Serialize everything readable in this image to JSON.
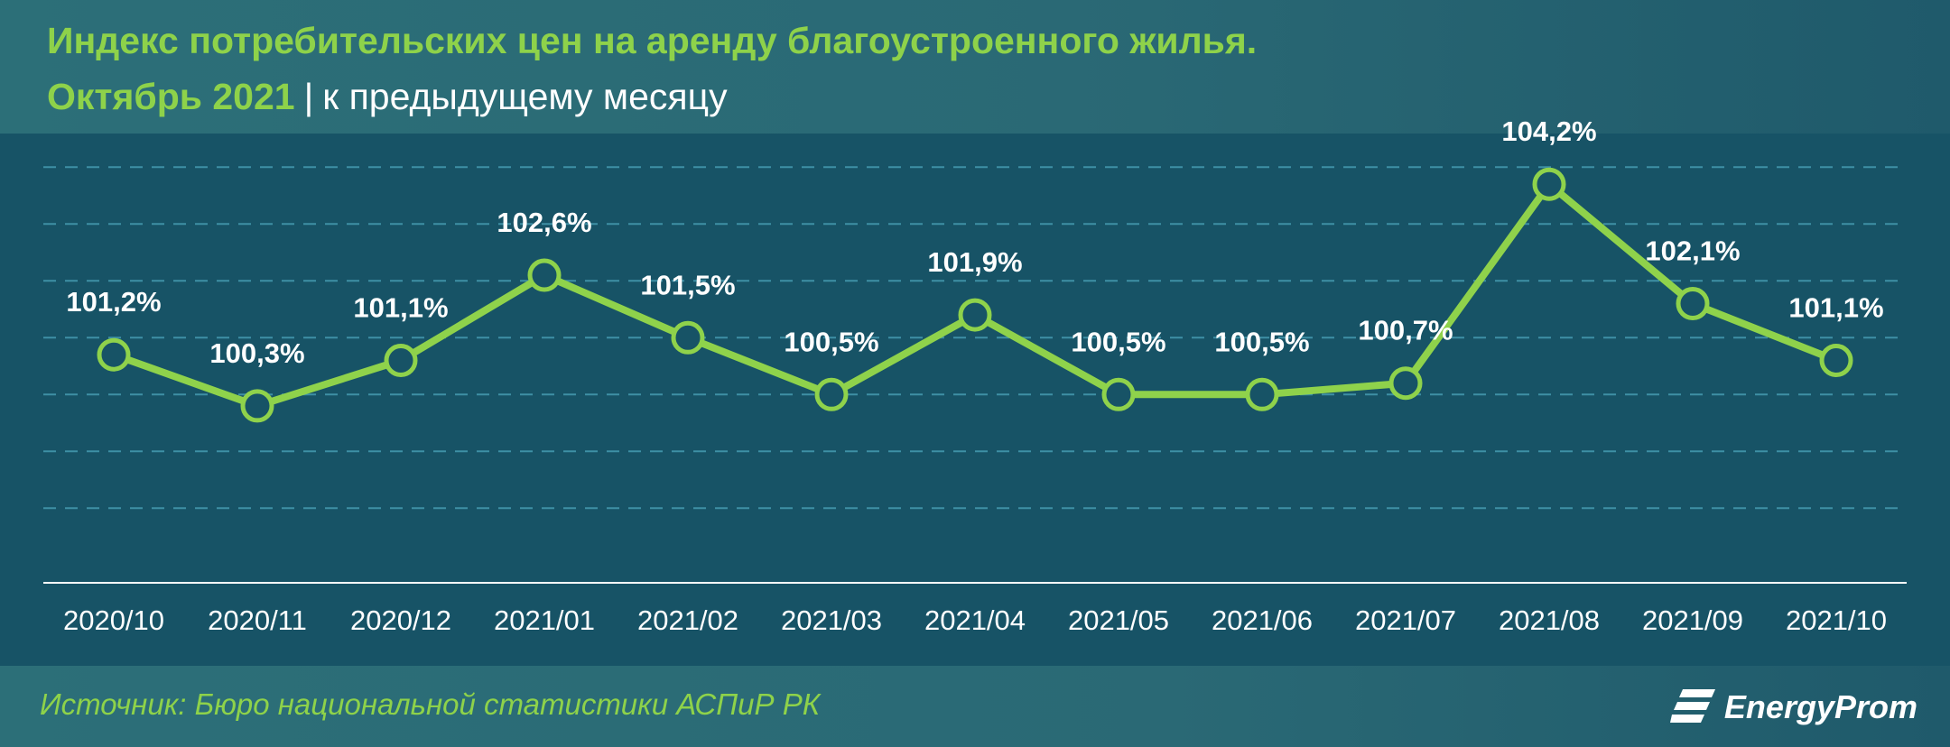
{
  "header": {
    "title": "Индекс потребительских цен на аренду благоустроенного жилья.",
    "period": "Октябрь 2021",
    "separator": "|",
    "subtitle": "к предыдущему месяцу"
  },
  "footer": {
    "source": "Источник: Бюро национальной статистики АСПиР РК",
    "brand": "EnergyProm",
    "brand_icon": "energyprom-logo-icon"
  },
  "colors": {
    "accent": "#8ed24a",
    "line": "#8fd24b",
    "plot_bg": "#175366",
    "header_bg": "#2a6975",
    "grid": "#5fc3d8"
  },
  "chart_data": {
    "type": "line",
    "categories": [
      "2020/10",
      "2020/11",
      "2020/12",
      "2021/01",
      "2021/02",
      "2021/03",
      "2021/04",
      "2021/05",
      "2021/06",
      "2021/07",
      "2021/08",
      "2021/09",
      "2021/10"
    ],
    "series": [
      {
        "values": [
          101.2,
          100.3,
          101.1,
          102.6,
          101.5,
          100.5,
          101.9,
          100.5,
          100.5,
          100.7,
          104.2,
          102.1,
          101.1
        ]
      }
    ],
    "data_labels": [
      "101,2%",
      "100,3%",
      "101,1%",
      "102,6%",
      "101,5%",
      "100,5%",
      "101,9%",
      "100,5%",
      "100,5%",
      "100,7%",
      "104,2%",
      "102,1%",
      "101,1%"
    ],
    "ylim": [
      98.0,
      105.0
    ],
    "grid": true,
    "legend": "none",
    "xlabel": "",
    "ylabel": ""
  }
}
